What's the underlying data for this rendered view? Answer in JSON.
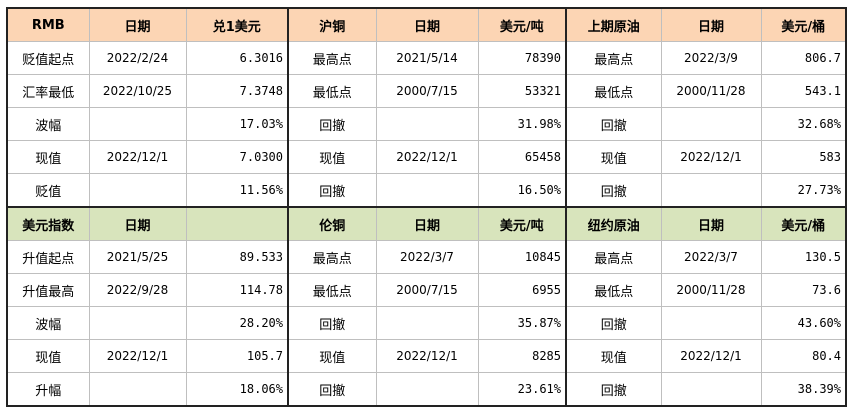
{
  "table": {
    "rows": [
      [
        "RMB",
        "日期",
        "兑1美元",
        "沪铜",
        "日期",
        "美元/吨",
        "上期原油",
        "日期",
        "美元/桶"
      ],
      [
        "贬值起点",
        "2022/2/24",
        "6.3016",
        "最高点",
        "2021/5/14",
        "78390",
        "最高点",
        "2022/3/9",
        "806.7"
      ],
      [
        "汇率最低",
        "2022/10/25",
        "7.3748",
        "最低点",
        "2000/7/15",
        "53321",
        "最低点",
        "2000/11/28",
        "543.1"
      ],
      [
        "波幅",
        null,
        "17.03%",
        "回撤",
        null,
        "31.98%",
        "回撤",
        null,
        "32.68%"
      ],
      [
        "现值",
        "2022/12/1",
        "7.0300",
        "现值",
        "2022/12/1",
        "65458",
        "现值",
        "2022/12/1",
        "583"
      ],
      [
        "贬值",
        null,
        "11.56%",
        "回撤",
        null,
        "16.50%",
        "回撤",
        null,
        "27.73%"
      ],
      [
        "美元指数",
        "日期",
        null,
        "伦铜",
        "日期",
        "美元/吨",
        "纽约原油",
        "日期",
        "美元/桶"
      ],
      [
        "升值起点",
        "2021/5/25",
        "89.533",
        "最高点",
        "2022/3/7",
        "10845",
        "最高点",
        "2022/3/7",
        "130.5"
      ],
      [
        "升值最高",
        "2022/9/28",
        "114.78",
        "最低点",
        "2000/7/15",
        "6955",
        "最低点",
        "2000/11/28",
        "73.6"
      ],
      [
        "波幅",
        null,
        "28.20%",
        "回撤",
        null,
        "35.87%",
        "回撤",
        null,
        "43.60%"
      ],
      [
        "现值",
        "2022/12/1",
        "105.7",
        "现值",
        "2022/12/1",
        "8285",
        "现值",
        "2022/12/1",
        "80.4"
      ],
      [
        "升幅",
        null,
        "18.06%",
        "回撤",
        null,
        "23.61%",
        "回撤",
        null,
        "38.39%"
      ]
    ]
  }
}
